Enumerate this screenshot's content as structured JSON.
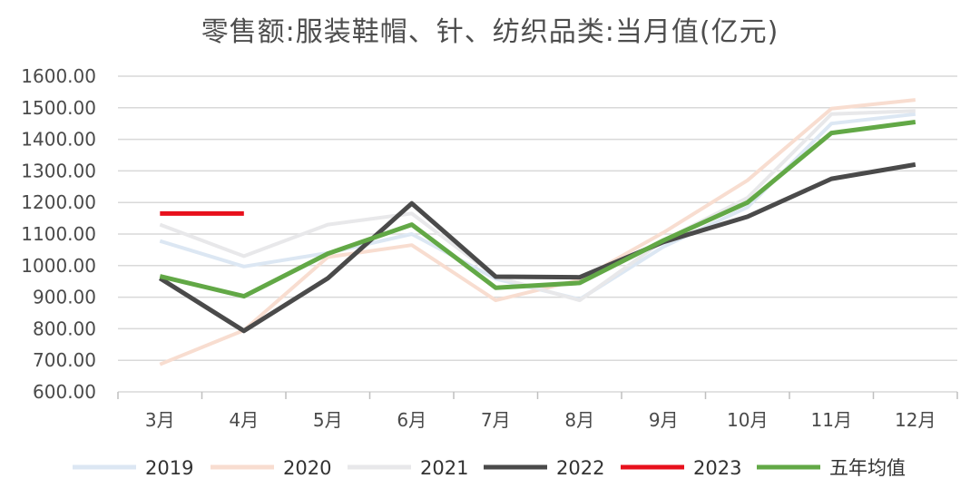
{
  "chart_data": {
    "type": "line",
    "title": "零售额:服装鞋帽、针、纺织品类:当月值(亿元)",
    "categories": [
      "3月",
      "4月",
      "5月",
      "6月",
      "7月",
      "8月",
      "9月",
      "10月",
      "11月",
      "12月"
    ],
    "ylim": [
      600,
      1600
    ],
    "yticks": [
      "600.00",
      "700.00",
      "800.00",
      "900.00",
      "1000.00",
      "1100.00",
      "1200.00",
      "1300.00",
      "1400.00",
      "1500.00",
      "1600.00"
    ],
    "grid": true,
    "legend_position": "bottom",
    "series": [
      {
        "name": "2019",
        "color": "#dce7f3",
        "width": 4,
        "values": [
          1078,
          997,
          1040,
          1100,
          958,
          893,
          1060,
          1185,
          1450,
          1480
        ]
      },
      {
        "name": "2020",
        "color": "#f8ddd0",
        "width": 4,
        "values": [
          687,
          795,
          1027,
          1065,
          890,
          955,
          1105,
          1270,
          1497,
          1525
        ]
      },
      {
        "name": "2021",
        "color": "#e8e8ea",
        "width": 4,
        "values": [
          1130,
          1030,
          1130,
          1165,
          965,
          890,
          1080,
          1215,
          1480,
          1490
        ]
      },
      {
        "name": "2022",
        "color": "#4a4a4a",
        "width": 5,
        "values": [
          960,
          793,
          960,
          1197,
          965,
          963,
          1075,
          1155,
          1275,
          1320
        ]
      },
      {
        "name": "2023",
        "color": "#e8101c",
        "width": 5,
        "values": [
          1165,
          1165,
          null,
          null,
          null,
          null,
          null,
          null,
          null,
          null
        ]
      },
      {
        "name": "五年均值",
        "color": "#62a846",
        "width": 5,
        "values": [
          966,
          903,
          1038,
          1130,
          930,
          945,
          1080,
          1200,
          1420,
          1455
        ]
      }
    ]
  }
}
